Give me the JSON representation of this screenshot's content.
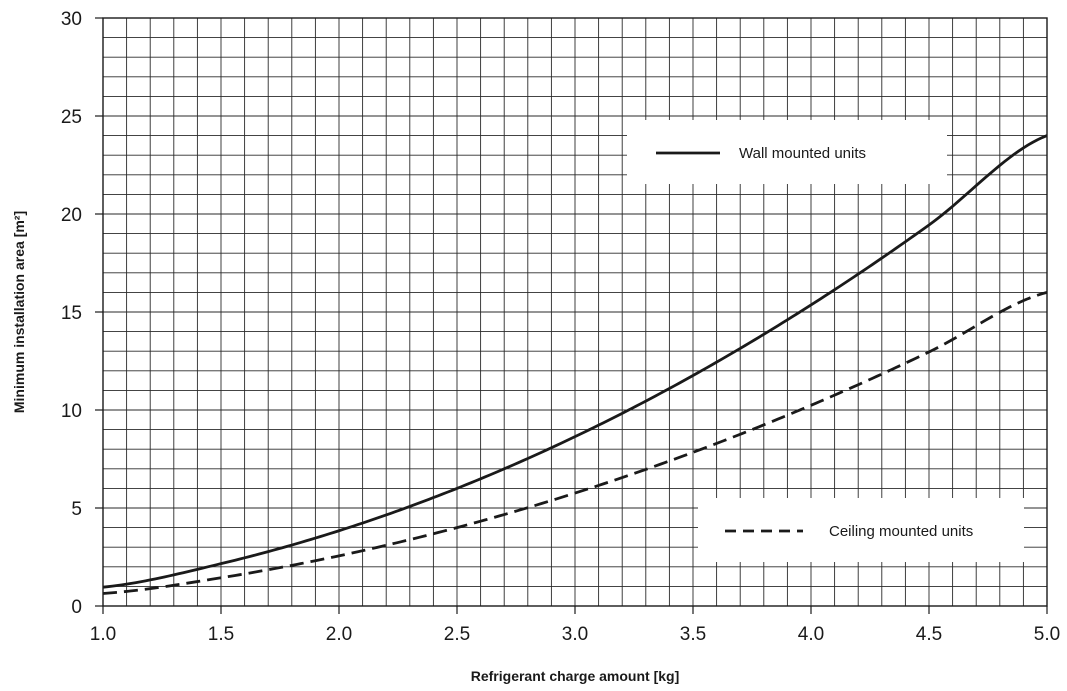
{
  "chart_data": {
    "type": "line",
    "title": "",
    "xlabel": "Refrigerant charge amount [kg]",
    "ylabel": "Minimum installation area [m²]",
    "xlim": [
      1.0,
      5.0
    ],
    "ylim": [
      0,
      30
    ],
    "x_ticks": [
      "1.0",
      "1.5",
      "2.0",
      "2.5",
      "3.0",
      "3.5",
      "4.0",
      "4.5",
      "5.0"
    ],
    "y_ticks": [
      "0",
      "5",
      "10",
      "15",
      "20",
      "25",
      "30"
    ],
    "grid": true,
    "minor_grid_x_step": 0.1,
    "minor_grid_y_step": 1,
    "line_color": "#1a1a1a",
    "x": [
      1.0,
      1.5,
      2.0,
      2.5,
      3.0,
      3.5,
      4.0,
      4.5,
      5.0
    ],
    "series": [
      {
        "name": "Wall mounted units",
        "style": "solid",
        "values": [
          0.96,
          2.16,
          3.84,
          6.0,
          8.64,
          11.76,
          15.36,
          19.44,
          24.0
        ]
      },
      {
        "name": "Ceiling mounted units",
        "style": "dashed",
        "values": [
          0.64,
          1.44,
          2.56,
          4.0,
          5.76,
          7.84,
          10.24,
          12.96,
          16.0
        ]
      }
    ]
  }
}
